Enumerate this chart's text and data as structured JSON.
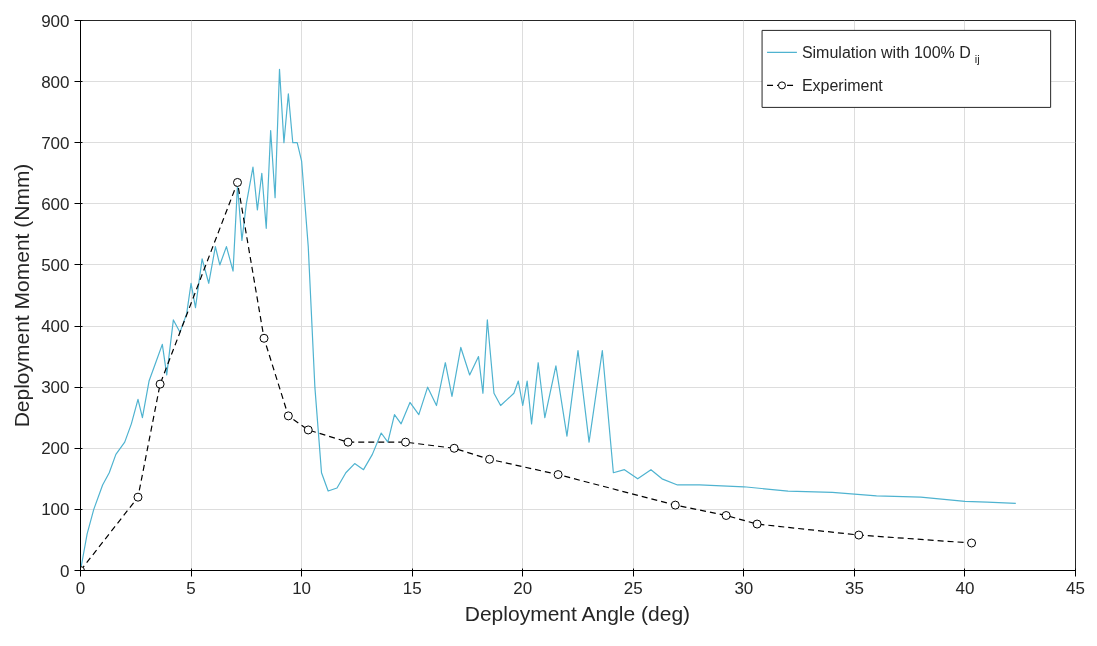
{
  "chart_data": {
    "type": "line",
    "xlabel": "Deployment Angle (deg)",
    "ylabel": "Deployment Moment (Nmm)",
    "xlim": [
      0,
      45
    ],
    "ylim": [
      0,
      900
    ],
    "xticks": [
      0,
      5,
      10,
      15,
      20,
      25,
      30,
      35,
      40,
      45
    ],
    "yticks": [
      0,
      100,
      200,
      300,
      400,
      500,
      600,
      700,
      800,
      900
    ],
    "grid": true,
    "legend": "top right",
    "series": [
      {
        "name": "Simulation with 100% D$_{ij}$",
        "color": "#4fb3d0",
        "marker": "none",
        "line_style": "solid",
        "x": [
          0,
          0.3,
          0.6,
          1.0,
          1.3,
          1.6,
          2.0,
          2.3,
          2.6,
          2.8,
          3.1,
          3.4,
          3.7,
          3.9,
          4.2,
          4.5,
          4.8,
          5.0,
          5.2,
          5.5,
          5.8,
          6.1,
          6.3,
          6.6,
          6.9,
          7.1,
          7.3,
          7.5,
          7.8,
          8.0,
          8.2,
          8.4,
          8.6,
          8.8,
          9.0,
          9.2,
          9.4,
          9.6,
          9.8,
          10.0,
          10.3,
          10.6,
          10.9,
          11.2,
          11.6,
          12.0,
          12.4,
          12.8,
          13.2,
          13.6,
          13.9,
          14.2,
          14.5,
          14.9,
          15.3,
          15.7,
          16.1,
          16.5,
          16.8,
          17.2,
          17.6,
          18.0,
          18.2,
          18.4,
          18.7,
          19.0,
          19.3,
          19.6,
          19.8,
          20.0,
          20.2,
          20.4,
          20.7,
          21.0,
          21.5,
          22.0,
          22.5,
          23.0,
          23.6,
          24.1,
          24.6,
          25.2,
          25.8,
          26.3,
          27.0,
          28,
          30,
          32,
          34,
          36,
          38,
          40,
          41,
          42.3
        ],
        "values": [
          0,
          60,
          100,
          140,
          160,
          190,
          210,
          240,
          280,
          250,
          310,
          340,
          370,
          320,
          410,
          390,
          420,
          470,
          430,
          510,
          470,
          530,
          500,
          530,
          490,
          630,
          540,
          600,
          660,
          590,
          650,
          560,
          720,
          610,
          820,
          700,
          780,
          700,
          700,
          670,
          530,
          300,
          160,
          130,
          135,
          160,
          175,
          165,
          190,
          225,
          210,
          255,
          240,
          275,
          255,
          300,
          270,
          340,
          285,
          365,
          320,
          350,
          290,
          410,
          290,
          270,
          280,
          290,
          310,
          270,
          310,
          240,
          340,
          250,
          335,
          220,
          360,
          210,
          360,
          160,
          165,
          150,
          165,
          150,
          140,
          140,
          137,
          130,
          128,
          122,
          120,
          113,
          112,
          110
        ]
      },
      {
        "name": "Experiment",
        "color": "#000000",
        "marker": "circle",
        "line_style": "dashed",
        "x": [
          0,
          2.6,
          3.6,
          7.1,
          8.3,
          9.4,
          10.3,
          12.1,
          14.7,
          16.9,
          18.5,
          21.6,
          26.9,
          29.2,
          30.6,
          35.2,
          40.3
        ],
        "values": [
          0,
          120,
          305,
          635,
          380,
          253,
          230,
          210,
          210,
          200,
          182,
          157,
          107,
          90,
          76,
          58,
          45
        ]
      }
    ]
  }
}
